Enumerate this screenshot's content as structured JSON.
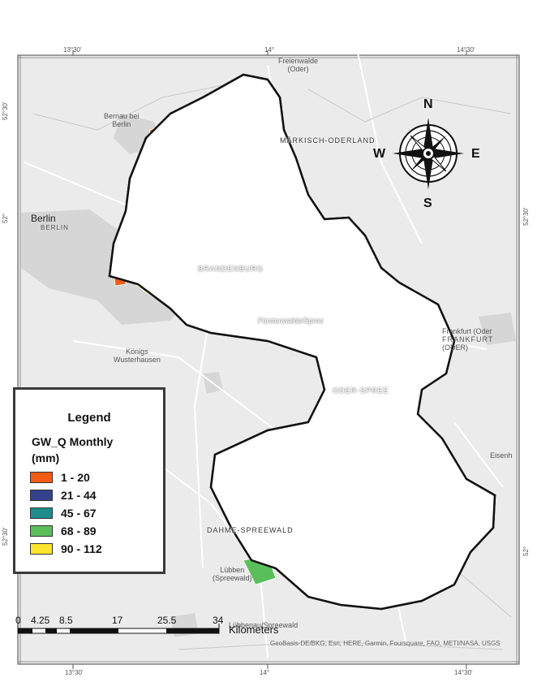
{
  "map": {
    "graticule": {
      "top_lon": [
        "13°30'",
        "14°",
        "14°30'"
      ],
      "bottom_lon": [
        "13°30'",
        "14°",
        "14°30'"
      ],
      "left_lat": [
        "52°30'",
        "52°",
        "52°30'"
      ],
      "right_lat": [
        "52°30'",
        "52°"
      ]
    },
    "places": {
      "berlin": "Berlin",
      "berlin_de": "BERLIN",
      "bernau_1": "Bernau bei",
      "bernau_2": "Berlin",
      "freienwalde_1": "Freienwalde",
      "freienwalde_2": "(Oder)",
      "fuerstenwalde": "Fürstenwalde/Spree",
      "koenigs_1": "Königs",
      "koenigs_2": "Wusterhausen",
      "frankfurt_1": "Frankfurt (Oder",
      "frankfurt_2": "FRANKFURT",
      "frankfurt_3": "(ODER)",
      "eisenh": "Eisenh",
      "luebben_1": "Lübben",
      "luebben_2": "(Spreewald)",
      "luebbenau": "Lübbenau/Spreewald"
    },
    "regions": {
      "maerkisch": "MÄRKISCH-ODERLAND",
      "brandenburg": "BRANDENBURG",
      "oder_spree": "ODER-SPREE",
      "dahme": "DAHME-SPREEWALD"
    },
    "legend": {
      "title": "Legend",
      "subtitle_1": "GW_Q Monthly",
      "subtitle_2": "(mm)",
      "classes": [
        {
          "label": "1 - 20",
          "color": "#f25c14"
        },
        {
          "label": "21 - 44",
          "color": "#33428a"
        },
        {
          "label": "45 - 67",
          "color": "#1f8c8c"
        },
        {
          "label": "68 - 89",
          "color": "#5abf5a"
        },
        {
          "label": "90 - 112",
          "color": "#fbe52d"
        }
      ]
    },
    "compass": {
      "n": "N",
      "s": "S",
      "e": "E",
      "w": "W"
    },
    "scalebar": {
      "ticks": [
        "0",
        "4.25",
        "8.5",
        "17",
        "25.5",
        "34"
      ],
      "units": "Kilometers"
    },
    "attribution": "GeoBasis-DE/BKG, Esri, HERE, Garmin, Foursquare, FAO, METI/NASA, USGS",
    "colors": {
      "boundary": "#111111",
      "basemap": "#eeeeee",
      "urban": "#d8d8d8",
      "roads": "#ffffff"
    }
  }
}
